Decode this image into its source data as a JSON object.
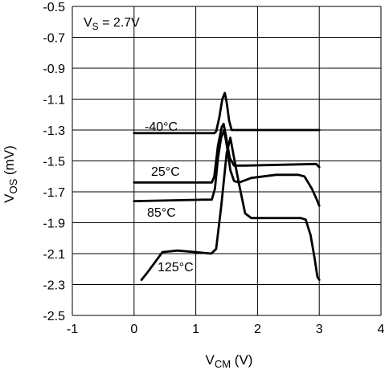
{
  "chart_data": {
    "type": "line",
    "xlabel": "VCM (V)",
    "xlabel_main": "V",
    "xlabel_sub": "CM",
    "xlabel_unit": " (V)",
    "ylabel": "VOS (mV)",
    "ylabel_main": "V",
    "ylabel_sub": "OS",
    "ylabel_unit": " (mV)",
    "xlim": [
      -1,
      4
    ],
    "ylim": [
      -2.5,
      -0.5
    ],
    "xticks": [
      -1,
      0,
      1,
      2,
      3,
      4
    ],
    "xtick_labels": [
      "-1",
      "0",
      "1",
      "2",
      "3",
      "4"
    ],
    "yticks": [
      -0.5,
      -0.7,
      -0.9,
      -1.1,
      -1.3,
      -1.5,
      -1.7,
      -1.9,
      -2.1,
      -2.3,
      -2.5
    ],
    "ytick_labels": [
      "-0.5",
      "-0.7",
      "-0.9",
      "-1.1",
      "-1.3",
      "-1.5",
      "-1.7",
      "-1.9",
      "-2.1",
      "-2.3",
      "-2.5"
    ],
    "grid": true,
    "annotation": {
      "main": "V",
      "sub": "S",
      "rest": " = 2.7V"
    },
    "series": [
      {
        "name": "-40°C",
        "points": [
          [
            0,
            -1.32
          ],
          [
            1.2,
            -1.32
          ],
          [
            1.3,
            -1.32
          ],
          [
            1.33,
            -1.31
          ],
          [
            1.38,
            -1.22
          ],
          [
            1.43,
            -1.1
          ],
          [
            1.47,
            -1.06
          ],
          [
            1.5,
            -1.12
          ],
          [
            1.54,
            -1.24
          ],
          [
            1.58,
            -1.3
          ],
          [
            1.7,
            -1.3
          ],
          [
            3.0,
            -1.3
          ]
        ]
      },
      {
        "name": "25°C",
        "points": [
          [
            0,
            -1.64
          ],
          [
            1.26,
            -1.64
          ],
          [
            1.3,
            -1.6
          ],
          [
            1.36,
            -1.4
          ],
          [
            1.42,
            -1.28
          ],
          [
            1.45,
            -1.26
          ],
          [
            1.49,
            -1.34
          ],
          [
            1.55,
            -1.48
          ],
          [
            1.62,
            -1.53
          ],
          [
            1.8,
            -1.53
          ],
          [
            2.95,
            -1.52
          ],
          [
            3.0,
            -1.54
          ]
        ]
      },
      {
        "name": "85°C",
        "points": [
          [
            0,
            -1.76
          ],
          [
            1.26,
            -1.75
          ],
          [
            1.31,
            -1.68
          ],
          [
            1.36,
            -1.48
          ],
          [
            1.41,
            -1.35
          ],
          [
            1.46,
            -1.3
          ],
          [
            1.51,
            -1.42
          ],
          [
            1.56,
            -1.56
          ],
          [
            1.62,
            -1.63
          ],
          [
            1.7,
            -1.64
          ],
          [
            1.9,
            -1.61
          ],
          [
            2.3,
            -1.59
          ],
          [
            2.66,
            -1.59
          ],
          [
            2.76,
            -1.6
          ],
          [
            2.88,
            -1.68
          ],
          [
            2.96,
            -1.75
          ],
          [
            3.0,
            -1.79
          ]
        ]
      },
      {
        "name": "125°C",
        "points": [
          [
            0.12,
            -2.27
          ],
          [
            0.22,
            -2.22
          ],
          [
            0.35,
            -2.15
          ],
          [
            0.46,
            -2.09
          ],
          [
            0.7,
            -2.08
          ],
          [
            1.0,
            -2.09
          ],
          [
            1.25,
            -2.1
          ],
          [
            1.33,
            -2.07
          ],
          [
            1.41,
            -1.8
          ],
          [
            1.5,
            -1.45
          ],
          [
            1.56,
            -1.35
          ],
          [
            1.62,
            -1.48
          ],
          [
            1.7,
            -1.65
          ],
          [
            1.8,
            -1.84
          ],
          [
            1.9,
            -1.87
          ],
          [
            2.5,
            -1.87
          ],
          [
            2.7,
            -1.87
          ],
          [
            2.78,
            -1.88
          ],
          [
            2.86,
            -1.98
          ],
          [
            2.92,
            -2.12
          ],
          [
            2.97,
            -2.25
          ],
          [
            3.0,
            -2.27
          ]
        ]
      }
    ],
    "series_labels": [
      "-40°C",
      "25°C",
      "85°C",
      "125°C"
    ]
  }
}
